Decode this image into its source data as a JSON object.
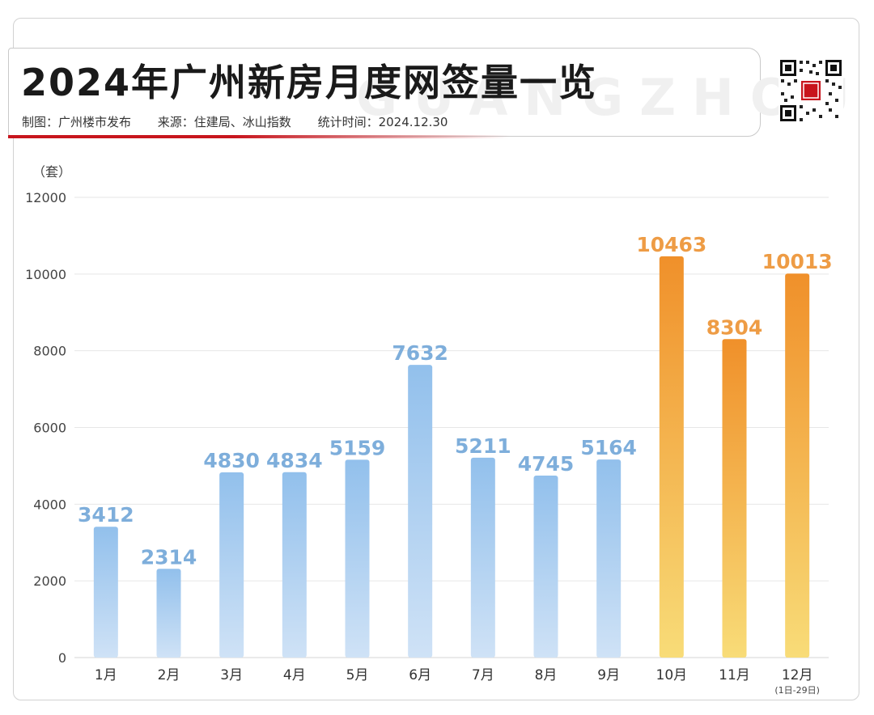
{
  "header": {
    "title": "2024年广州新房月度网签量一览",
    "title_ghost": "GUANGZHOU",
    "credit": "制图：广州楼市发布",
    "source": "来源：住建局、冰山指数",
    "stat_time": "统计时间：2024.12.30"
  },
  "colors": {
    "blue_top": "#92c0ec",
    "blue_bottom": "#cfe2f6",
    "blue_label": "#7eaedb",
    "orange_top": "#f0902a",
    "orange_bottom": "#f8dc78",
    "orange_label": "#ee9c45",
    "brand_red": "#c8151d"
  },
  "chart_data": {
    "type": "bar",
    "ylabel": "（套）",
    "ylim": [
      0,
      12000
    ],
    "yticks": [
      0,
      2000,
      4000,
      6000,
      8000,
      10000,
      12000
    ],
    "grid": true,
    "categories": [
      "1月",
      "2月",
      "3月",
      "4月",
      "5月",
      "6月",
      "7月",
      "8月",
      "9月",
      "10月",
      "11月",
      "12月"
    ],
    "category_notes": [
      "",
      "",
      "",
      "",
      "",
      "",
      "",
      "",
      "",
      "",
      "",
      "(1日-29日)"
    ],
    "values": [
      3412,
      2314,
      4830,
      4834,
      5159,
      7632,
      5211,
      4745,
      5164,
      10463,
      8304,
      10013
    ],
    "highlight_from_index": 9
  }
}
